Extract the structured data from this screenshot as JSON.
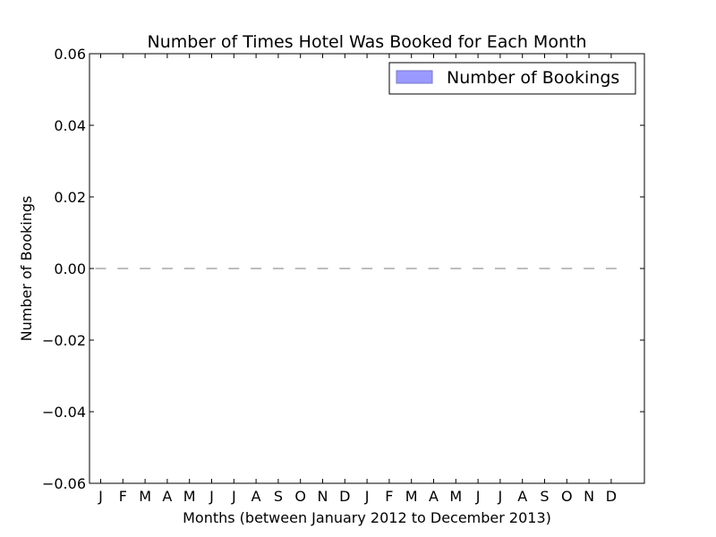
{
  "chart_data": {
    "type": "bar",
    "title": "Number of Times Hotel Was Booked for Each Month",
    "xlabel": "Months (between January 2012 to December 2013)",
    "ylabel": "Number of Bookings",
    "categories": [
      "J",
      "F",
      "M",
      "A",
      "M",
      "J",
      "J",
      "A",
      "S",
      "O",
      "N",
      "D",
      "J",
      "F",
      "M",
      "A",
      "M",
      "J",
      "J",
      "A",
      "S",
      "O",
      "N",
      "D"
    ],
    "series": [
      {
        "name": "Number of Bookings",
        "color": "#9999ff",
        "values": [
          0,
          0,
          0,
          0,
          0,
          0,
          0,
          0,
          0,
          0,
          0,
          0,
          0,
          0,
          0,
          0,
          0,
          0,
          0,
          0,
          0,
          0,
          0,
          0
        ]
      }
    ],
    "ylim": [
      -0.06,
      0.06
    ],
    "yticks": [
      -0.06,
      -0.04,
      -0.02,
      0.0,
      0.02,
      0.04,
      0.06
    ],
    "ytick_labels": [
      "−0.06",
      "−0.04",
      "−0.02",
      "0.00",
      "0.02",
      "0.04",
      "0.06"
    ],
    "grid": false,
    "legend_position": "top-right"
  }
}
